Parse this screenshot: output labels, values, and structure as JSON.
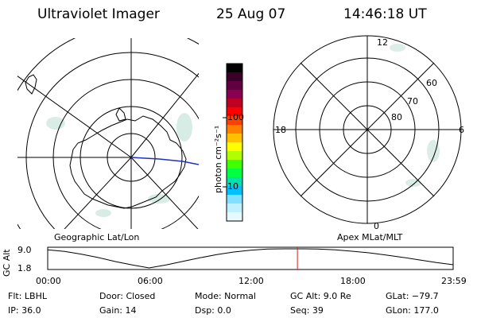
{
  "header": {
    "instrument": "Ultraviolet Imager",
    "date": "25 Aug 07",
    "time": "14:46:18 UT"
  },
  "left_map": {
    "label": "Geographic Lat/Lon"
  },
  "right_map": {
    "label": "Apex MLat/MLT",
    "mlt_labels": [
      "12",
      "18",
      "6",
      "0"
    ],
    "mlat_labels": [
      "60",
      "70",
      "80"
    ]
  },
  "colorbar": {
    "unit_label": "photon cm⁻²s⁻¹",
    "ticks": [
      "100",
      "10"
    ],
    "colors": [
      "#000000",
      "#3a0028",
      "#600040",
      "#8a0050",
      "#c00020",
      "#ff0000",
      "#ff4000",
      "#ff8000",
      "#ffc000",
      "#ffff00",
      "#b0ff00",
      "#40ff00",
      "#00ff40",
      "#00e0b0",
      "#00c0ff",
      "#80e0ff",
      "#c0f0ff",
      "#e8f8ff"
    ]
  },
  "timeline": {
    "ylabel": "GC Alt",
    "ytick_top": "9.0",
    "ytick_bottom": "1.8",
    "xticks": [
      "00:00",
      "06:00",
      "12:00",
      "18:00",
      "23:59"
    ]
  },
  "info": {
    "filter": "Flt: LBHL",
    "ip": "IP: 36.0",
    "door": "Door: Closed",
    "gain": "Gain: 14",
    "mode": "Mode:  Normal",
    "dsp": "Dsp:     0.0",
    "gc_alt": "GC Alt: 9.0 Re",
    "seq": "Seq: 39",
    "glat": "GLat: −79.7",
    "glon": "GLon: 177.0"
  },
  "chart_data": {
    "type": "line",
    "title": "",
    "xlabel": "",
    "ylabel": "GC Alt",
    "x": [
      "00:00",
      "01:00",
      "02:00",
      "03:00",
      "04:00",
      "05:00",
      "06:00",
      "07:00",
      "08:00",
      "09:00",
      "10:00",
      "11:00",
      "12:00",
      "13:00",
      "14:00",
      "15:00",
      "16:00",
      "17:00",
      "18:00",
      "19:00",
      "20:00",
      "21:00",
      "22:00",
      "23:00",
      "23:59"
    ],
    "series": [
      {
        "values": [
          8.6,
          8.0,
          7.0,
          5.7,
          4.2,
          2.9,
          1.8,
          2.9,
          4.3,
          5.6,
          6.8,
          7.8,
          8.5,
          8.9,
          9.0,
          9.0,
          8.9,
          8.6,
          8.1,
          7.5,
          6.7,
          5.8,
          4.8,
          3.8,
          3.0
        ]
      }
    ],
    "ylim": [
      1.8,
      9.0
    ],
    "marker_time": "14:46:18",
    "grid": false
  }
}
